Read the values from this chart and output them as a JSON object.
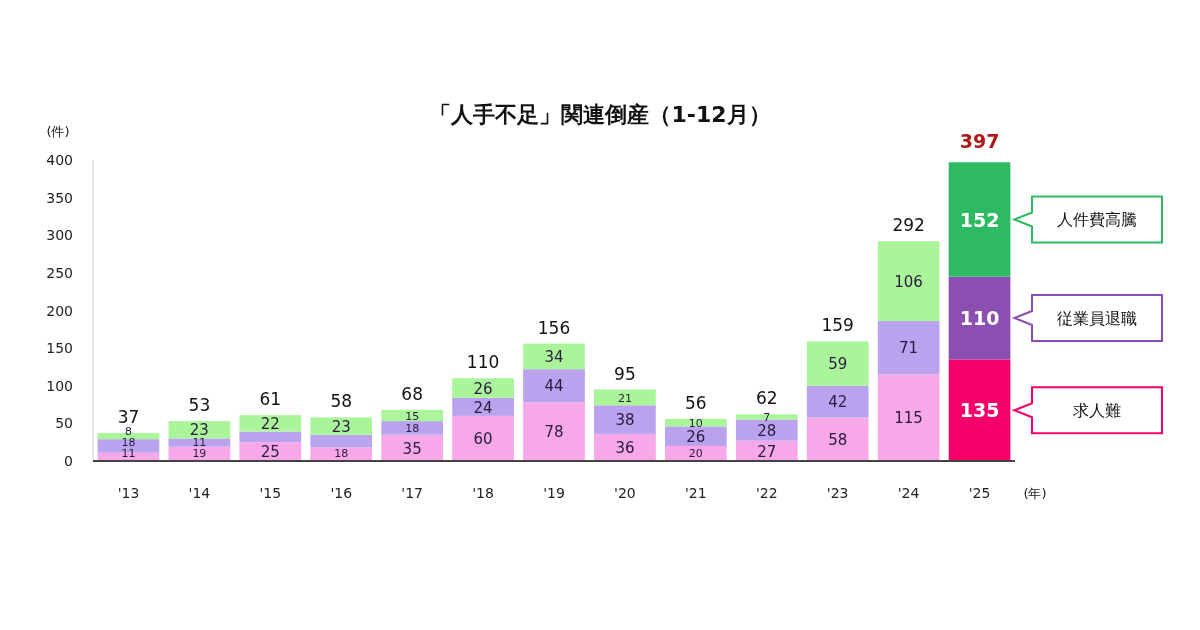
{
  "chart_data": {
    "type": "bar",
    "stacked": true,
    "title": "「人手不足」関連倒産（1-12月）",
    "ylabel": "(件)",
    "xlabel": "(年)",
    "categories": [
      "'13",
      "'14",
      "'15",
      "'16",
      "'17",
      "'18",
      "'19",
      "'20",
      "'21",
      "'22",
      "'23",
      "'24",
      "'25"
    ],
    "ylim": [
      0,
      400
    ],
    "yticks": [
      0,
      50,
      100,
      150,
      200,
      250,
      300,
      350,
      400
    ],
    "series": [
      {
        "name": "求人難",
        "colors": [
          "#f7a8e8",
          "#f7a8e8",
          "#f7a8e8",
          "#f7a8e8",
          "#f7a8e8",
          "#f7a8e8",
          "#f7a8e8",
          "#f7a8e8",
          "#f7a8e8",
          "#f7a8e8",
          "#f7a8e8",
          "#f7a8e8",
          "#f5006a"
        ],
        "values": [
          11,
          19,
          25,
          18,
          35,
          60,
          78,
          36,
          20,
          27,
          58,
          115,
          135
        ],
        "value_labels": [
          "11",
          "19",
          "25",
          "18",
          "35",
          "60",
          "78",
          "36",
          "20",
          "27",
          "58",
          "115",
          "135"
        ]
      },
      {
        "name": "従業員退職",
        "colors": [
          "#b9a2ee",
          "#b9a2ee",
          "#b9a2ee",
          "#b9a2ee",
          "#b9a2ee",
          "#b9a2ee",
          "#b9a2ee",
          "#b9a2ee",
          "#b9a2ee",
          "#b9a2ee",
          "#b9a2ee",
          "#b9a2ee",
          "#8a4fb0"
        ],
        "values": [
          18,
          11,
          14,
          17,
          18,
          24,
          44,
          38,
          26,
          28,
          42,
          71,
          110
        ],
        "value_labels": [
          "18",
          "11",
          null,
          null,
          "18",
          "24",
          "44",
          "38",
          "26",
          "28",
          "42",
          "71",
          "110"
        ]
      },
      {
        "name": "人件費高騰",
        "colors": [
          "#aaf59a",
          "#aaf59a",
          "#aaf59a",
          "#aaf59a",
          "#aaf59a",
          "#aaf59a",
          "#aaf59a",
          "#aaf59a",
          "#aaf59a",
          "#aaf59a",
          "#aaf59a",
          "#aaf59a",
          "#2dba63"
        ],
        "values": [
          8,
          23,
          22,
          23,
          15,
          26,
          34,
          21,
          10,
          7,
          59,
          106,
          152
        ],
        "value_labels": [
          "8",
          "23",
          "22",
          "23",
          "15",
          "26",
          "34",
          "21",
          "10",
          "7",
          "59",
          "106",
          "152"
        ]
      }
    ],
    "totals": [
      "37",
      "53",
      "61",
      "58",
      "68",
      "110",
      "156",
      "95",
      "56",
      "62",
      "159",
      "292",
      "397"
    ]
  }
}
